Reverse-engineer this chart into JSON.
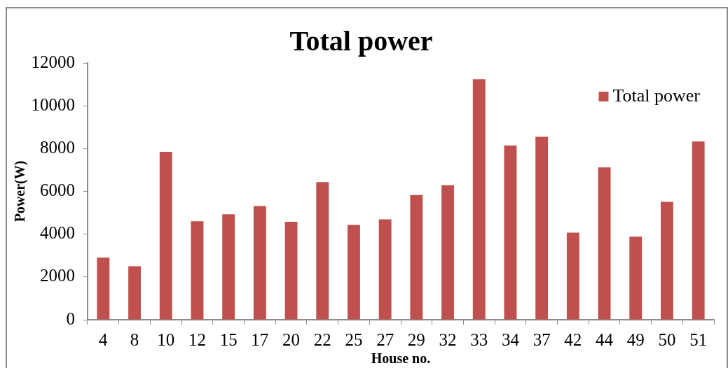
{
  "chart_data": {
    "type": "bar",
    "title": "Total power",
    "xlabel": "House no.",
    "ylabel": "Power(W)",
    "categories": [
      "4",
      "8",
      "10",
      "12",
      "15",
      "17",
      "20",
      "22",
      "25",
      "27",
      "29",
      "32",
      "33",
      "34",
      "37",
      "42",
      "44",
      "49",
      "50",
      "51"
    ],
    "series": [
      {
        "name": "Total power",
        "color": "#c0504d",
        "values": [
          2900,
          2500,
          7850,
          4600,
          4930,
          5310,
          4580,
          6430,
          4430,
          4690,
          5830,
          6290,
          11240,
          8140,
          8550,
          4070,
          7120,
          3880,
          5510,
          8330
        ]
      }
    ],
    "ylim": [
      0,
      12000
    ],
    "yticks": [
      0,
      2000,
      4000,
      6000,
      8000,
      10000,
      12000
    ],
    "grid": false,
    "legend": "top right"
  }
}
